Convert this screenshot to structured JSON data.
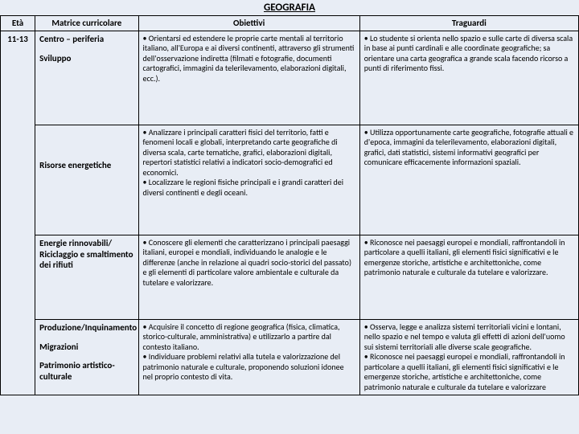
{
  "title": "GEOGRAFIA",
  "headers": {
    "eta": "Età",
    "matrice": "Matrice curricolare",
    "obiettivi": "Obiettivi",
    "traguardi": "Traguardi"
  },
  "eta": "11-13",
  "matrice": {
    "g1a": "Centro – periferia",
    "g1b": "Sviluppo",
    "g2a": "Risorse energetiche",
    "g3a": "Energie rinnovabili/ Riciclaggio e smaltimento dei rifiuti",
    "g4a": "Produzione/Inquinamento",
    "g4b": "Migrazioni",
    "g4c": "Patrimonio artistico-culturale"
  },
  "obiettivi": {
    "g1": "• Orientarsi ed estendere le proprie carte mentali al territorio italiano, all'Europa e ai diversi continenti, attraverso gli strumenti dell'osservazione indiretta (filmati e fotografie, documenti cartografici, immagini da telerilevamento, elaborazioni digitali, ecc.).",
    "g2": "• Analizzare i principali caratteri fisici del territorio, fatti e fenomeni locali e globali, interpretando carte geografiche di diversa scala, carte tematiche, grafici, elaborazioni digitali, repertori statistici relativi a indicatori socio-demografici ed economici.\n• Localizzare le regioni fisiche principali e i grandi caratteri dei diversi continenti e degli oceani.",
    "g3": "• Conoscere gli elementi che caratterizzano i principali paesaggi italiani, europei e mondiali, individuando le analogie e le differenze (anche in relazione ai quadri socio-storici del passato) e gli elementi di particolare valore ambientale e culturale da tutelare e valorizzare.",
    "g4": "• Acquisire il concetto di regione geografica (fisica, climatica, storico-culturale, amministrativa) e utilizzarlo a partire dal contesto italiano.\n• Individuare problemi relativi alla tutela e valorizzazione del patrimonio naturale e culturale, proponendo soluzioni idonee nel proprio contesto di vita."
  },
  "traguardi": {
    "g1": "• Lo studente si orienta nello spazio e sulle carte di diversa scala in base ai punti cardinali e alle coordinate geografiche; sa orientare una carta geografica a grande scala facendo ricorso a punti di riferimento fissi.",
    "g2": "• Utilizza opportunamente carte geografiche, fotografie attuali e d'epoca, immagini da telerilevamento, elaborazioni digitali, grafici, dati statistici, sistemi informativi geografici per comunicare efficacemente informazioni spaziali.",
    "g3": "• Riconosce nei paesaggi europei e mondiali, raffrontandoli in particolare a quelli italiani, gli elementi fisici significativi e le emergenze storiche, artistiche e architettoniche, come patrimonio naturale e culturale da tutelare e valorizzare.",
    "g4": "• Osserva, legge e analizza sistemi territoriali vicini e lontani, nello spazio e nel tempo e valuta gli effetti di azioni dell'uomo sui sistemi territoriali alle diverse scale geografiche.\n• Riconosce nei paesaggi europei e mondiali, raffrontandoli in particolare a quelli italiani, gli elementi fisici significativi e le emergenze storiche, artistiche e architettoniche, come patrimonio naturale e culturale da tutelare e valorizzare"
  }
}
